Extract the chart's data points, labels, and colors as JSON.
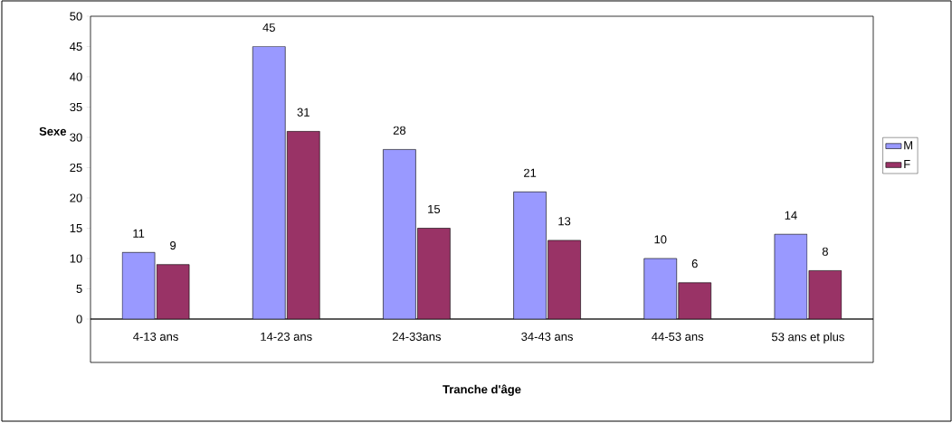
{
  "chart_data": {
    "type": "bar",
    "xlabel": "Tranche d'âge",
    "ylabel": "Sexe",
    "categories": [
      "4-13 ans",
      "14-23 ans",
      "24-33ans",
      "34-43 ans",
      "44-53 ans",
      "53 ans et plus"
    ],
    "series": [
      {
        "name": "M",
        "color": "#9999ff",
        "values": [
          11,
          45,
          28,
          21,
          10,
          14
        ]
      },
      {
        "name": "F",
        "color": "#993366",
        "values": [
          9,
          31,
          15,
          13,
          6,
          8
        ]
      }
    ],
    "ylim": [
      0,
      50
    ],
    "yticks": [
      0,
      5,
      10,
      15,
      20,
      25,
      30,
      35,
      40,
      45,
      50
    ],
    "data_labels": true,
    "legend": "right"
  }
}
